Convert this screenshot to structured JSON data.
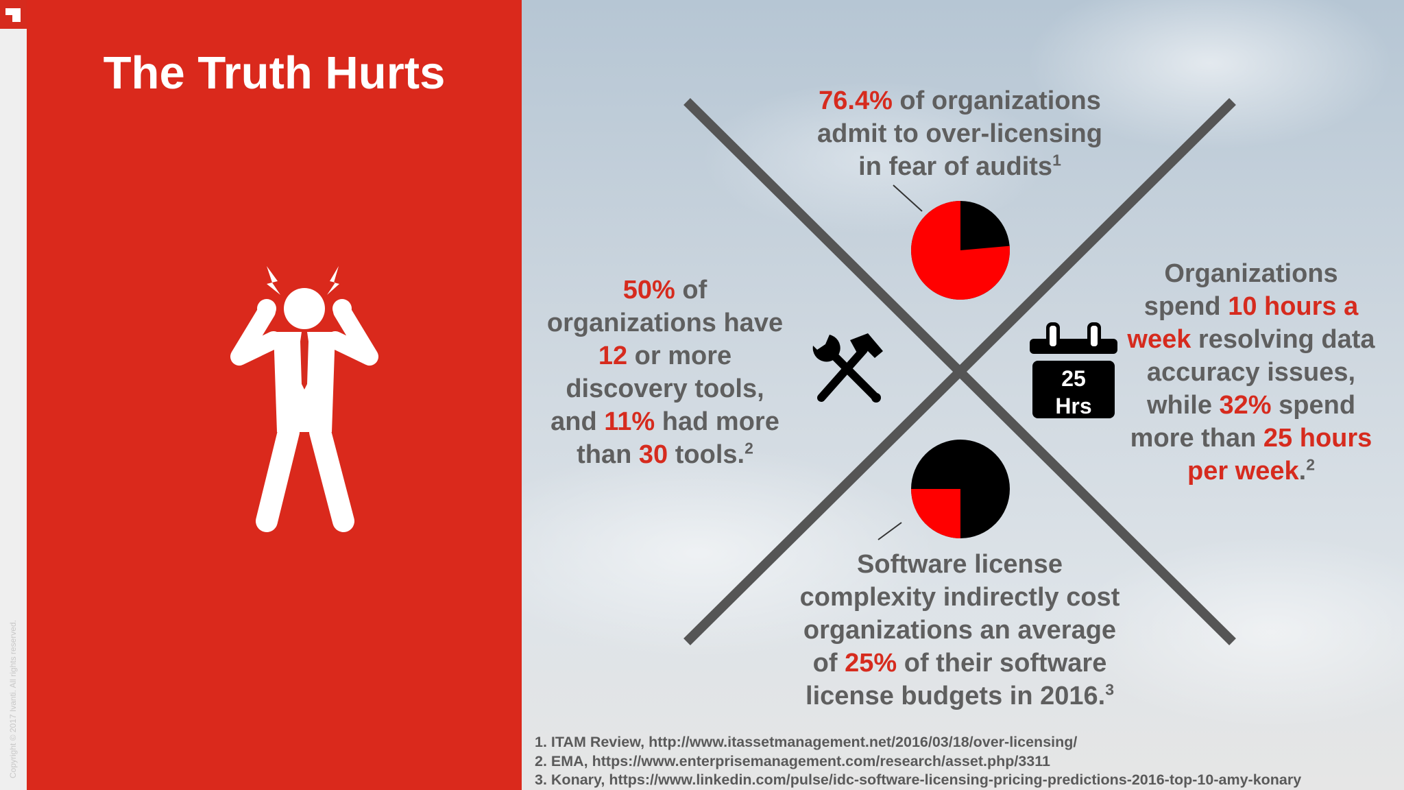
{
  "title": "The Truth Hurts",
  "copyright": "Copyright © 2017 Ivanti. All rights reserved.",
  "stats": {
    "top": {
      "pct": "76.4%",
      "line1_rest": " of organizations",
      "line2": "admit to over-licensing",
      "line3": "in fear of audits",
      "ref": "1"
    },
    "left": {
      "pct1": "50%",
      "pct1_rest": " of",
      "line2": "organizations have",
      "num1": "12",
      "num1_rest": " or more",
      "line4": "discovery tools,",
      "line5_pre": "and ",
      "pct2": "11%",
      "line5_rest": " had more",
      "line6_pre": "than ",
      "num2": "30",
      "line6_rest": " tools.",
      "ref": "2"
    },
    "right": {
      "line1": "Organizations",
      "line2_pre": "spend ",
      "hl1": "10 hours a",
      "hl2": "week",
      "line3_rest": " resolving data",
      "line4": "accuracy issues,",
      "line5_pre": "while ",
      "pct": "32%",
      "line5_rest": " spend",
      "line6_pre": "more than ",
      "hl3": "25 hours",
      "hl4": "per week",
      "end": ".",
      "ref": "2"
    },
    "bottom": {
      "line1": "Software license",
      "line2": "complexity indirectly cost",
      "line3": "organizations an average",
      "line4_pre": "of ",
      "pct": "25%",
      "line4_rest": " of their software",
      "line5": "license budgets in 2016.",
      "ref": "3"
    }
  },
  "pies": {
    "top": {
      "red_fraction": 0.764,
      "red": "#ff0000",
      "dark": "#000000"
    },
    "bottom": {
      "red_fraction": 0.25,
      "red": "#ff0000",
      "dark": "#000000"
    }
  },
  "calendar": {
    "line1": "25",
    "line2": "Hrs"
  },
  "icons": {
    "figure": "stressed-man-icon",
    "tools": "wrench-hammer-icon",
    "calendar": "calendar-icon"
  },
  "footnotes": [
    "1.  ITAM Review, http://www.itassetmanagement.net/2016/03/18/over-licensing/",
    "2.  EMA, https://www.enterprisemanagement.com/research/asset.php/3311",
    "3.  Konary, https://www.linkedin.com/pulse/idc-software-licensing-pricing-predictions-2016-top-10-amy-konary"
  ],
  "colors": {
    "accent": "#da291c",
    "highlight": "#d62b1e",
    "text": "#5f5f5f",
    "x_lines": "#555555"
  }
}
